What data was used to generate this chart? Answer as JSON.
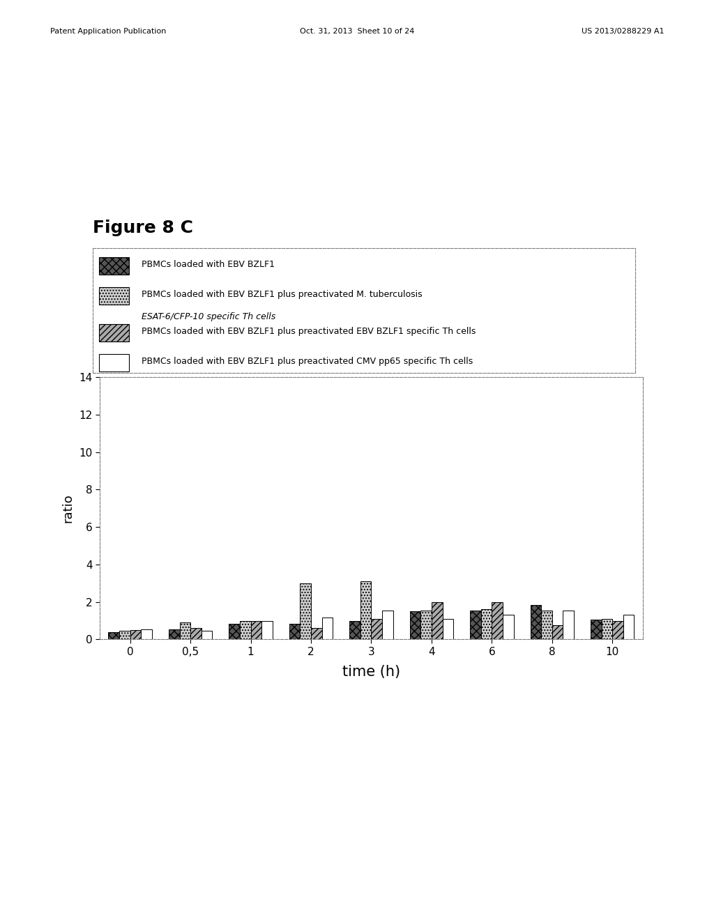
{
  "title": "Figure 8 C",
  "xlabel": "time (h)",
  "ylabel": "ratio",
  "ylim": [
    0,
    14
  ],
  "yticks": [
    0,
    2,
    4,
    6,
    8,
    10,
    12,
    14
  ],
  "time_labels": [
    "0",
    "0,5",
    "1",
    "2",
    "3",
    "4",
    "6",
    "8",
    "10"
  ],
  "series": {
    "s1": {
      "label": "PBMCs loaded with EBV BZLF1",
      "color": "#555555",
      "hatch": "xxx",
      "values": [
        0.4,
        0.55,
        0.85,
        0.85,
        1.0,
        1.5,
        1.55,
        1.85,
        1.05
      ]
    },
    "s2": {
      "label_part1": "PBMCs loaded with EBV BZLF1 plus preactivated M. tuberculosis",
      "label_part2": "ESAT-6/CFP-10 specific Th cells",
      "color": "#d0d0d0",
      "hatch": "....",
      "values": [
        0.45,
        0.9,
        1.0,
        3.0,
        3.1,
        1.55,
        1.6,
        1.55,
        1.1
      ]
    },
    "s3": {
      "label": "PBMCs loaded with EBV BZLF1 plus preactivated EBV BZLF1 specific Th cells",
      "color": "#aaaaaa",
      "hatch": "////",
      "values": [
        0.5,
        0.6,
        1.0,
        0.6,
        1.1,
        2.0,
        2.0,
        0.75,
        1.0
      ]
    },
    "s4": {
      "label": "PBMCs loaded with EBV BZLF1 plus preactivated CMV pp65 specific Th cells",
      "color": "#ffffff",
      "hatch": "",
      "values": [
        0.55,
        0.45,
        1.0,
        1.15,
        1.55,
        1.1,
        1.3,
        1.55,
        1.3
      ]
    }
  },
  "bar_width": 0.18,
  "background_color": "#ffffff",
  "fig_title_fontsize": 18,
  "axis_fontsize": 13,
  "tick_fontsize": 11,
  "legend_fontsize": 9,
  "page_header_left": "Patent Application Publication",
  "page_header_mid": "Oct. 31, 2013  Sheet 10 of 24",
  "page_header_right": "US 2013/0288229 A1"
}
